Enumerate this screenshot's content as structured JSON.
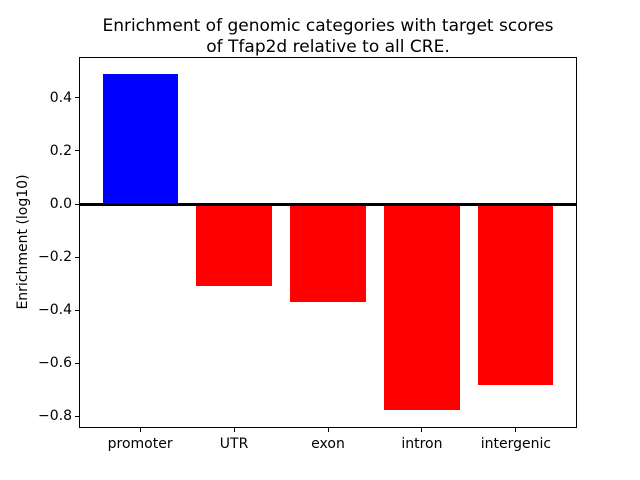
{
  "chart_data": {
    "type": "bar",
    "title": "Enrichment of genomic categories with target scores\nof Tfap2d relative to all CRE.",
    "xlabel": "",
    "ylabel": "Enrichment (log10)",
    "categories": [
      "promoter",
      "UTR",
      "exon",
      "intron",
      "intergenic"
    ],
    "values": [
      0.49,
      -0.31,
      -0.37,
      -0.775,
      -0.68
    ],
    "bar_colors": [
      "#0000ff",
      "#ff0000",
      "#ff0000",
      "#ff0000",
      "#ff0000"
    ],
    "positive_color": "#0000ff",
    "negative_color": "#ff0000",
    "ylim": [
      -0.84,
      0.55
    ],
    "xlim": [
      -0.64,
      4.64
    ],
    "bar_width": 0.8,
    "yticks": [
      0.4,
      0.2,
      0.0,
      -0.2,
      -0.4,
      -0.6,
      -0.8
    ],
    "ytick_labels": [
      "0.4",
      "0.2",
      "0.0",
      "−0.2",
      "−0.4",
      "−0.6",
      "−0.8"
    ],
    "zero_line_y": 0.0,
    "grid": false,
    "legend": "none",
    "frame_color": "#000000",
    "background_color": "#ffffff"
  }
}
